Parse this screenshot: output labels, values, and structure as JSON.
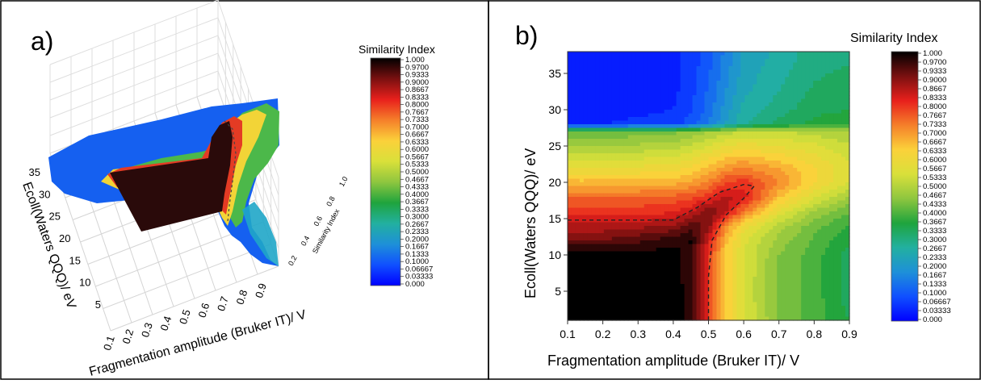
{
  "panels": {
    "a": {
      "label": "a)"
    },
    "b": {
      "label": "b)"
    }
  },
  "colorbar": {
    "title": "Similarity Index",
    "ticks_a": [
      "1.000",
      "0.9700",
      "0.9333",
      "0.9000",
      "0.8667",
      "0.8333",
      "0.8000",
      "0.7667",
      "0.7333",
      "0.7000",
      "0.6667",
      "0.6333",
      "0.6000",
      "0.5667",
      "0.5333",
      "0.5000",
      "0.4667",
      "0.4333",
      "0.4000",
      "0.3667",
      "0.3333",
      "0.3000",
      "0.2667",
      "0.2333",
      "0.2000",
      "0.1667",
      "0.1333",
      "0.1000",
      "0.06667",
      "0.03333",
      "0.000"
    ],
    "ticks_b": [
      "1.000",
      "0.9700",
      "0.9333",
      "0.9000",
      "0.8667",
      "0.8333",
      "0.8000",
      "0.7667",
      "0.7333",
      "0.7000",
      "0.6667",
      "0.6333",
      "0.6000",
      "0.5667",
      "0.5333",
      "0.5000",
      "0.4667",
      "0.4333",
      "0.4000",
      "0.3667",
      "0.3333",
      "0.3000",
      "0.2667",
      "0.2333",
      "0.2000",
      "0.1667",
      "0.1333",
      "0.1000",
      "0.06667",
      "0.03333",
      "0.000"
    ],
    "stops": [
      "#000000",
      "#7a1010",
      "#e8201c",
      "#f57f2a",
      "#fbd13a",
      "#d9e03a",
      "#8ec63f",
      "#1fa43d",
      "#22b0a0",
      "#1e90d8",
      "#1050ff",
      "#0000ff"
    ]
  },
  "chart_data": [
    {
      "type": "surface3d",
      "xlabel": "Fragmentation amplitude (Bruker IT)/ V",
      "ylabel": "Ecoll(Waters QQQ)/ eV",
      "zlabel": "Similarity Index",
      "x_ticks": [
        "0.1",
        "0.2",
        "0.3",
        "0.4",
        "0.5",
        "0.6",
        "0.7",
        "0.8",
        "0.9"
      ],
      "y_ticks": [
        "5",
        "10",
        "15",
        "20",
        "25",
        "30",
        "35"
      ],
      "z_ticks": [
        "0.2",
        "0.4",
        "0.6",
        "0.8",
        "1.0"
      ],
      "xlim": [
        0.1,
        0.9
      ],
      "ylim": [
        0,
        37
      ],
      "zlim": [
        0,
        1.0
      ]
    },
    {
      "type": "heatmap",
      "style": "filled contour",
      "xlabel": "Fragmentation amplitude (Bruker IT)/ V",
      "ylabel": "Ecoll(Waters QQQ)/ eV",
      "x_ticks": [
        "0.1",
        "0.2",
        "0.3",
        "0.4",
        "0.5",
        "0.6",
        "0.7",
        "0.8",
        "0.9"
      ],
      "y_ticks": [
        "5",
        "10",
        "15",
        "20",
        "25",
        "30",
        "35"
      ],
      "xlim": [
        0.1,
        0.9
      ],
      "ylim": [
        1,
        38
      ],
      "x": [
        0.1,
        0.2,
        0.3,
        0.4,
        0.45,
        0.5,
        0.55,
        0.6,
        0.7,
        0.8,
        0.9
      ],
      "y": [
        1,
        5,
        10,
        12,
        14,
        16,
        18,
        20,
        22,
        25,
        27,
        28,
        30,
        33,
        38
      ],
      "values": [
        [
          1.0,
          1.0,
          1.0,
          1.0,
          0.97,
          0.8,
          0.64,
          0.55,
          0.45,
          0.4,
          0.35
        ],
        [
          1.0,
          1.0,
          1.0,
          1.0,
          0.97,
          0.8,
          0.64,
          0.55,
          0.44,
          0.4,
          0.33
        ],
        [
          1.0,
          1.0,
          1.0,
          1.0,
          0.96,
          0.8,
          0.64,
          0.55,
          0.45,
          0.4,
          0.33
        ],
        [
          0.92,
          0.92,
          0.94,
          0.97,
          0.99,
          0.84,
          0.66,
          0.56,
          0.47,
          0.41,
          0.36
        ],
        [
          0.86,
          0.86,
          0.87,
          0.89,
          0.94,
          0.9,
          0.72,
          0.6,
          0.5,
          0.43,
          0.38
        ],
        [
          0.8,
          0.8,
          0.8,
          0.81,
          0.84,
          0.92,
          0.86,
          0.74,
          0.58,
          0.48,
          0.42
        ],
        [
          0.75,
          0.75,
          0.75,
          0.76,
          0.77,
          0.8,
          0.86,
          0.84,
          0.66,
          0.56,
          0.48
        ],
        [
          0.66,
          0.66,
          0.66,
          0.67,
          0.69,
          0.72,
          0.78,
          0.8,
          0.72,
          0.62,
          0.55
        ],
        [
          0.58,
          0.58,
          0.59,
          0.6,
          0.62,
          0.66,
          0.7,
          0.72,
          0.68,
          0.62,
          0.56
        ],
        [
          0.48,
          0.48,
          0.49,
          0.5,
          0.52,
          0.55,
          0.58,
          0.6,
          0.58,
          0.56,
          0.52
        ],
        [
          0.42,
          0.42,
          0.43,
          0.44,
          0.46,
          0.48,
          0.5,
          0.52,
          0.52,
          0.5,
          0.48
        ],
        [
          0.05,
          0.05,
          0.06,
          0.07,
          0.1,
          0.15,
          0.22,
          0.28,
          0.33,
          0.36,
          0.37
        ],
        [
          0.03,
          0.03,
          0.04,
          0.05,
          0.08,
          0.13,
          0.2,
          0.26,
          0.3,
          0.34,
          0.35
        ],
        [
          0.02,
          0.02,
          0.03,
          0.04,
          0.07,
          0.12,
          0.18,
          0.24,
          0.28,
          0.32,
          0.33
        ],
        [
          0.02,
          0.02,
          0.03,
          0.04,
          0.06,
          0.1,
          0.16,
          0.22,
          0.26,
          0.3,
          0.31
        ]
      ],
      "annotation": "dashed contour at 0.9700"
    }
  ]
}
